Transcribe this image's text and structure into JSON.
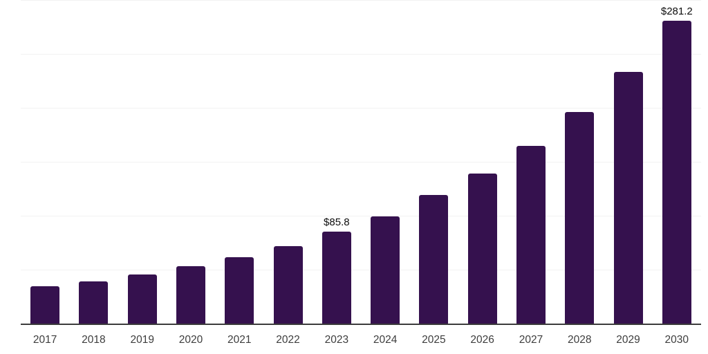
{
  "chart_data": {
    "type": "bar",
    "title": "",
    "xlabel": "",
    "ylabel": "",
    "categories": [
      "2017",
      "2018",
      "2019",
      "2020",
      "2021",
      "2022",
      "2023",
      "2024",
      "2025",
      "2026",
      "2027",
      "2028",
      "2029",
      "2030"
    ],
    "values": [
      35.2,
      39.7,
      46.1,
      53.8,
      62.1,
      72.3,
      85.8,
      99.9,
      119.8,
      139.6,
      165.2,
      196.6,
      234.3,
      281.2
    ],
    "value_labels": {
      "2023": "$85.8",
      "2030": "$281.2"
    },
    "ylim": [
      0,
      300
    ],
    "grid_step": 50,
    "grid": "horizontal-only",
    "legend": "none",
    "y_tick_labels_visible": false,
    "bar_color": "#35114e",
    "gridline_color": "#f2f2f2",
    "axis_line_color": "#3c3c3c",
    "value_label_color": "#0d0d0d",
    "tick_label_color": "#3d3d3d",
    "background_color": "#ffffff"
  }
}
